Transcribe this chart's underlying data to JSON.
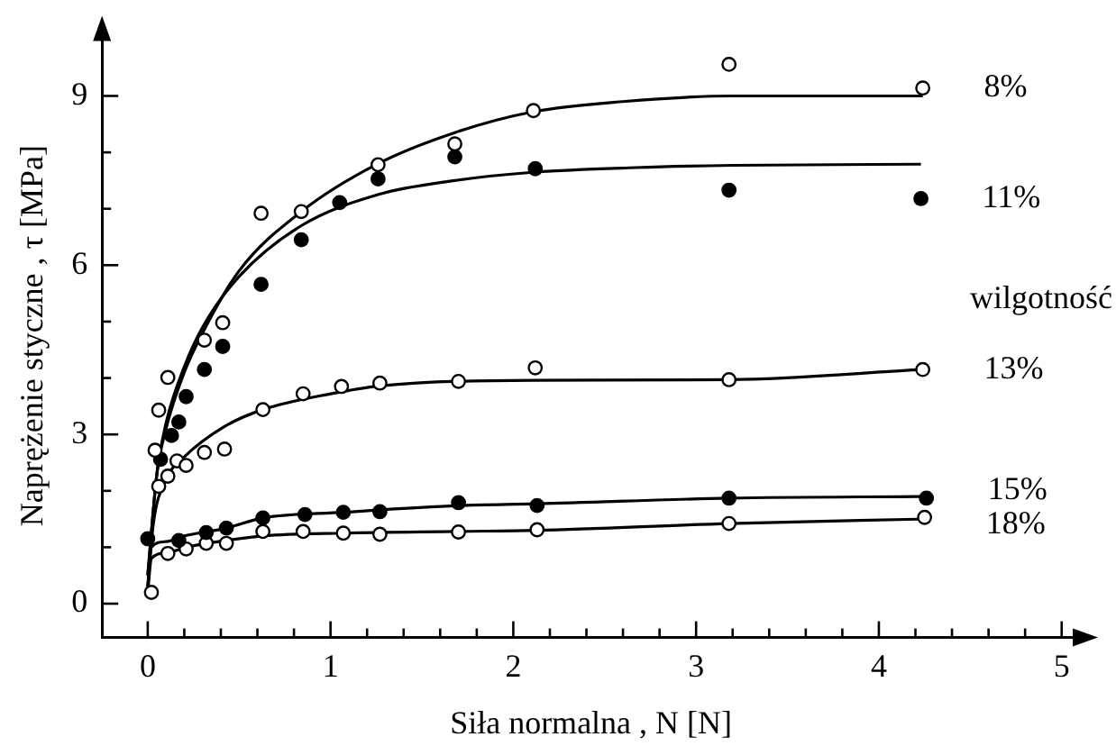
{
  "chart_data": {
    "type": "scatter",
    "xlabel": "Siła normalna , N [N]",
    "ylabel": "Naprężenie styczne , τ [MPa]",
    "annotations": [
      "wilgotność"
    ],
    "xlim": [
      -0.25,
      5.1
    ],
    "ylim": [
      -0.6,
      10.1
    ],
    "xticks": [
      0,
      {
        "value": 0.2,
        "label": null
      },
      {
        "value": 0.4,
        "label": null
      },
      {
        "value": 0.6,
        "label": null
      },
      {
        "value": 0.8,
        "label": null
      },
      1,
      {
        "value": 1.2,
        "label": null
      },
      {
        "value": 1.4,
        "label": null
      },
      {
        "value": 1.6,
        "label": null
      },
      {
        "value": 1.8,
        "label": null
      },
      2,
      {
        "value": 2.2,
        "label": null
      },
      {
        "value": 2.4,
        "label": null
      },
      {
        "value": 2.6,
        "label": null
      },
      {
        "value": 2.8,
        "label": null
      },
      3,
      {
        "value": 3.2,
        "label": null
      },
      {
        "value": 3.4,
        "label": null
      },
      {
        "value": 3.6,
        "label": null
      },
      {
        "value": 3.8,
        "label": null
      },
      4,
      {
        "value": 4.2,
        "label": null
      },
      {
        "value": 4.4,
        "label": null
      },
      {
        "value": 4.6,
        "label": null
      },
      {
        "value": 4.8,
        "label": null
      },
      5
    ],
    "yticks": [
      0,
      {
        "value": 1,
        "label": null
      },
      {
        "value": 2,
        "label": null
      },
      3,
      {
        "value": 4,
        "label": null
      },
      {
        "value": 5,
        "label": null
      },
      6,
      {
        "value": 7,
        "label": null
      },
      {
        "value": 8,
        "label": null
      },
      9
    ],
    "grid": false,
    "legend": false,
    "marker": "circle",
    "series": [
      {
        "name": "8%",
        "color": "#ffffff",
        "x": [
          0.04,
          0.06,
          0.11,
          0.31,
          0.41,
          0.62,
          0.84,
          1.26,
          1.68,
          2.11,
          3.18,
          4.24
        ],
        "values": [
          2.72,
          3.43,
          4.01,
          4.67,
          4.98,
          6.92,
          6.95,
          7.78,
          8.15,
          8.74,
          9.56,
          9.14
        ]
      },
      {
        "name": "11%",
        "color": "#000000",
        "x": [
          0.07,
          0.13,
          0.17,
          0.21,
          0.31,
          0.41,
          0.62,
          0.84,
          1.05,
          1.26,
          1.68,
          2.12,
          3.18,
          4.23
        ],
        "values": [
          2.56,
          2.98,
          3.22,
          3.67,
          4.15,
          4.56,
          5.66,
          6.45,
          7.11,
          7.53,
          7.92,
          7.71,
          7.33,
          7.18
        ]
      },
      {
        "name": "13%",
        "color": "#ffffff",
        "x": [
          0.06,
          0.11,
          0.16,
          0.21,
          0.31,
          0.42,
          0.63,
          0.85,
          1.06,
          1.27,
          1.7,
          2.12,
          3.18,
          4.24
        ],
        "values": [
          2.08,
          2.26,
          2.53,
          2.45,
          2.68,
          2.74,
          3.44,
          3.72,
          3.85,
          3.91,
          3.94,
          4.18,
          3.97,
          4.15
        ]
      },
      {
        "name": "15%",
        "color": "#000000",
        "x": [
          0.0,
          0.17,
          0.32,
          0.43,
          0.63,
          0.86,
          1.07,
          1.27,
          1.7,
          2.13,
          3.18,
          4.26
        ],
        "values": [
          1.15,
          1.12,
          1.26,
          1.34,
          1.52,
          1.58,
          1.62,
          1.63,
          1.79,
          1.74,
          1.87,
          1.87
        ]
      },
      {
        "name": "18%",
        "color": "#ffffff",
        "x": [
          0.02,
          0.11,
          0.21,
          0.32,
          0.43,
          0.63,
          0.85,
          1.07,
          1.27,
          1.7,
          2.13,
          3.18,
          4.25
        ],
        "values": [
          0.2,
          0.89,
          0.97,
          1.07,
          1.07,
          1.28,
          1.28,
          1.25,
          1.23,
          1.27,
          1.31,
          1.42,
          1.53
        ]
      },
      {
        "type": "line",
        "marker": "none",
        "color": "#000000",
        "x": [
          0,
          0.05,
          0.1,
          0.2,
          0.3,
          0.5,
          0.84,
          1.26,
          1.68,
          2.11,
          2.6,
          3.2,
          4.24
        ],
        "values": [
          0.5,
          2.3,
          3.1,
          4.1,
          4.8,
          5.9,
          6.95,
          7.8,
          8.35,
          8.72,
          8.9,
          9.0,
          9.0
        ]
      },
      {
        "type": "line",
        "marker": "none",
        "color": "#000000",
        "x": [
          0,
          0.05,
          0.1,
          0.2,
          0.3,
          0.5,
          0.84,
          1.26,
          1.68,
          2.12,
          2.67,
          3.2,
          4.23
        ],
        "values": [
          0.5,
          2.3,
          3.2,
          4.2,
          4.9,
          5.8,
          6.7,
          7.25,
          7.5,
          7.65,
          7.73,
          7.77,
          7.79
        ]
      },
      {
        "type": "line",
        "marker": "none",
        "color": "#000000",
        "x": [
          0,
          0.03,
          0.1,
          0.2,
          0.42,
          0.63,
          1.0,
          1.27,
          2.12,
          3.18,
          4.24
        ],
        "values": [
          0.3,
          1.4,
          2.2,
          2.6,
          3.14,
          3.44,
          3.72,
          3.86,
          3.96,
          3.97,
          4.15
        ]
      },
      {
        "type": "line",
        "marker": "none",
        "color": "#000000",
        "x": [
          0,
          0.02,
          0.1,
          0.2,
          0.43,
          0.63,
          1.07,
          1.7,
          2.13,
          3.18,
          4.26
        ],
        "values": [
          0.3,
          1.0,
          1.1,
          1.2,
          1.34,
          1.52,
          1.62,
          1.74,
          1.77,
          1.87,
          1.9
        ]
      },
      {
        "type": "line",
        "marker": "none",
        "color": "#000000",
        "x": [
          0,
          0.02,
          0.1,
          0.21,
          0.43,
          0.63,
          1.07,
          1.7,
          2.13,
          3.18,
          4.25
        ],
        "values": [
          0.2,
          0.8,
          0.9,
          1.0,
          1.12,
          1.2,
          1.25,
          1.28,
          1.3,
          1.42,
          1.5
        ]
      }
    ]
  }
}
